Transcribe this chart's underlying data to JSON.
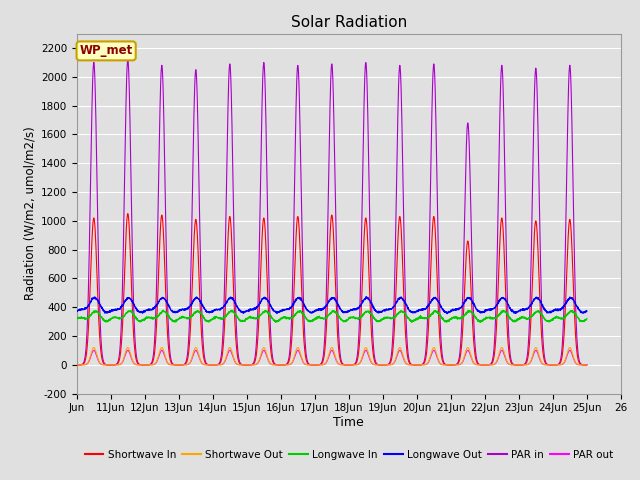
{
  "title": "Solar Radiation",
  "xlabel": "Time",
  "ylabel": "Radiation (W/m2, umol/m2/s)",
  "ylim": [
    -200,
    2300
  ],
  "yticks": [
    -200,
    0,
    200,
    400,
    600,
    800,
    1000,
    1200,
    1400,
    1600,
    1800,
    2000,
    2200
  ],
  "xlim_days": [
    10,
    26
  ],
  "xtick_labels": [
    "Jun",
    "11Jun",
    "12Jun",
    "13Jun",
    "14Jun",
    "15Jun",
    "16Jun",
    "17Jun",
    "18Jun",
    "19Jun",
    "20Jun",
    "21Jun",
    "22Jun",
    "23Jun",
    "24Jun",
    "25Jun",
    "26"
  ],
  "xtick_positions": [
    10,
    11,
    12,
    13,
    14,
    15,
    16,
    17,
    18,
    19,
    20,
    21,
    22,
    23,
    24,
    25,
    26
  ],
  "colors": {
    "shortwave_in": "#ff0000",
    "shortwave_out": "#ffa500",
    "longwave_in": "#00cc00",
    "longwave_out": "#0000ff",
    "par_in": "#aa00cc",
    "par_out": "#ff00ff"
  },
  "legend_labels": [
    "Shortwave In",
    "Shortwave Out",
    "Longwave In",
    "Longwave Out",
    "PAR in",
    "PAR out"
  ],
  "legend_colors": [
    "#ff0000",
    "#ffa500",
    "#00cc00",
    "#0000ff",
    "#aa00cc",
    "#ff00ff"
  ],
  "wp_met_label": "WP_met",
  "background_color": "#e0e0e0",
  "plot_bg_color": "#e0e0e0",
  "grid_color": "#ffffff",
  "n_days": 15,
  "samples_per_day": 144,
  "sw_peaks": [
    1020,
    1050,
    1040,
    1010,
    1030,
    1020,
    1030,
    1040,
    1020,
    1030,
    1030,
    860,
    1020,
    1000,
    1010
  ],
  "par_peaks": [
    2100,
    2120,
    2080,
    2050,
    2090,
    2100,
    2080,
    2090,
    2100,
    2080,
    2090,
    1680,
    2080,
    2060,
    2080
  ]
}
